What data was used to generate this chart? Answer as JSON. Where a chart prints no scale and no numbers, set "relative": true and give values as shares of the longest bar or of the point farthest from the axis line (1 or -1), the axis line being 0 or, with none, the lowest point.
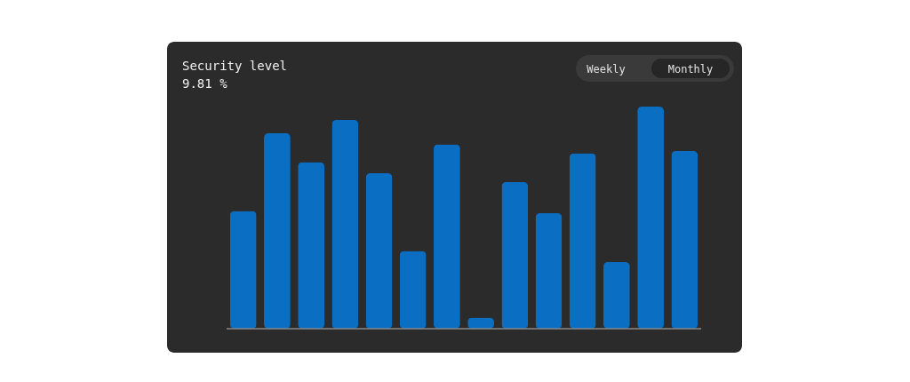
{
  "chart_data": {
    "type": "bar",
    "title": "Security level",
    "subtitle": "9.81 %",
    "relative": true,
    "categories": [
      null,
      null,
      null,
      null,
      null,
      null,
      null,
      null,
      null,
      null,
      null,
      null,
      null,
      null
    ],
    "values": [
      0.53,
      0.88,
      0.75,
      0.94,
      0.7,
      0.35,
      0.83,
      0.05,
      0.66,
      0.52,
      0.79,
      0.3,
      1,
      0.8
    ],
    "color": "#0a6fc2",
    "annotations": [
      "Weekly",
      "Monthly"
    ]
  }
}
